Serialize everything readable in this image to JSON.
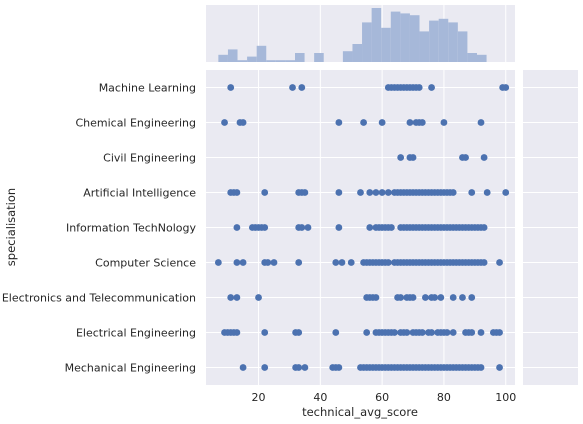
{
  "chart_data": {
    "type": "scatter",
    "title": "",
    "xlabel": "technical_avg_score",
    "ylabel": "specialisation",
    "xlim": [
      3,
      103
    ],
    "x_ticks": [
      20,
      40,
      60,
      80,
      100
    ],
    "grid": true,
    "theme": {
      "background": "#eaeaf2",
      "grid": "#ffffff",
      "point": "#4c72b0",
      "hist": "#a6b8d9"
    },
    "categories": [
      "Machine Learning",
      "Chemical Engineering",
      "Civil Engineering",
      "Artificial Intelligence",
      "Information TechNology",
      "Computer Science",
      "Electronics and Telecommunication",
      "Electrical Engineering",
      "Mechanical Engineering"
    ],
    "points": [
      {
        "category": "Machine Learning",
        "x": [
          11,
          31,
          34,
          62,
          63,
          64,
          65,
          66,
          67,
          68,
          69,
          70,
          71,
          72,
          76,
          99,
          100
        ]
      },
      {
        "category": "Chemical Engineering",
        "x": [
          9,
          14,
          15,
          46,
          54,
          60,
          69,
          71,
          72,
          73,
          80,
          92
        ]
      },
      {
        "category": "Civil Engineering",
        "x": [
          66,
          69,
          70,
          86,
          87,
          93
        ]
      },
      {
        "category": "Artificial Intelligence",
        "x": [
          11,
          12,
          13,
          22,
          33,
          34,
          35,
          46,
          53,
          56,
          58,
          60,
          62,
          64,
          65,
          66,
          67,
          68,
          69,
          70,
          71,
          72,
          73,
          74,
          75,
          76,
          77,
          78,
          79,
          80,
          81,
          82,
          83,
          89,
          94,
          100
        ]
      },
      {
        "category": "Information TechNology",
        "x": [
          13,
          18,
          19,
          20,
          21,
          22,
          33,
          34,
          36,
          46,
          56,
          58,
          59,
          60,
          61,
          62,
          63,
          66,
          67,
          68,
          69,
          70,
          71,
          72,
          73,
          74,
          75,
          76,
          77,
          78,
          79,
          80,
          81,
          82,
          83,
          84,
          85,
          86,
          87,
          88,
          89,
          90,
          91,
          92,
          93
        ]
      },
      {
        "category": "Computer Science",
        "x": [
          7,
          13,
          15,
          22,
          23,
          25,
          33,
          45,
          47,
          50,
          54,
          55,
          56,
          57,
          58,
          59,
          60,
          61,
          62,
          64,
          65,
          66,
          67,
          68,
          69,
          70,
          71,
          72,
          73,
          74,
          75,
          76,
          77,
          78,
          79,
          80,
          81,
          82,
          83,
          84,
          85,
          86,
          87,
          88,
          89,
          90,
          91,
          92,
          93,
          98
        ]
      },
      {
        "category": "Electronics and Telecommunication",
        "x": [
          11,
          13,
          20,
          55,
          56,
          57,
          58,
          65,
          66,
          68,
          69,
          70,
          74,
          76,
          77,
          79,
          83,
          86,
          89
        ]
      },
      {
        "category": "Electrical Engineering",
        "x": [
          9,
          10,
          11,
          12,
          13,
          22,
          32,
          33,
          45,
          55,
          58,
          59,
          60,
          61,
          62,
          63,
          64,
          66,
          67,
          68,
          70,
          71,
          72,
          73,
          75,
          76,
          78,
          79,
          80,
          81,
          83,
          87,
          88,
          89,
          92,
          96,
          97,
          98
        ]
      },
      {
        "category": "Mechanical Engineering",
        "x": [
          15,
          22,
          32,
          33,
          35,
          44,
          45,
          46,
          53,
          54,
          55,
          56,
          57,
          58,
          59,
          60,
          61,
          62,
          63,
          64,
          65,
          66,
          67,
          68,
          69,
          70,
          71,
          72,
          73,
          74,
          75,
          76,
          77,
          78,
          79,
          80,
          81,
          82,
          83,
          84,
          85,
          86,
          87,
          88,
          89,
          90,
          91,
          92,
          98
        ]
      }
    ],
    "marginal_x_histogram": {
      "bin_start": 7,
      "bin_width": 3.1,
      "counts": [
        4,
        7,
        1,
        3,
        9,
        1,
        1,
        1,
        5,
        0,
        5,
        0,
        0,
        6,
        10,
        22,
        30,
        19,
        28,
        27,
        26,
        17,
        23,
        24,
        22,
        17,
        5,
        4
      ]
    },
    "marginal_y_histogram": {
      "counts": []
    }
  }
}
